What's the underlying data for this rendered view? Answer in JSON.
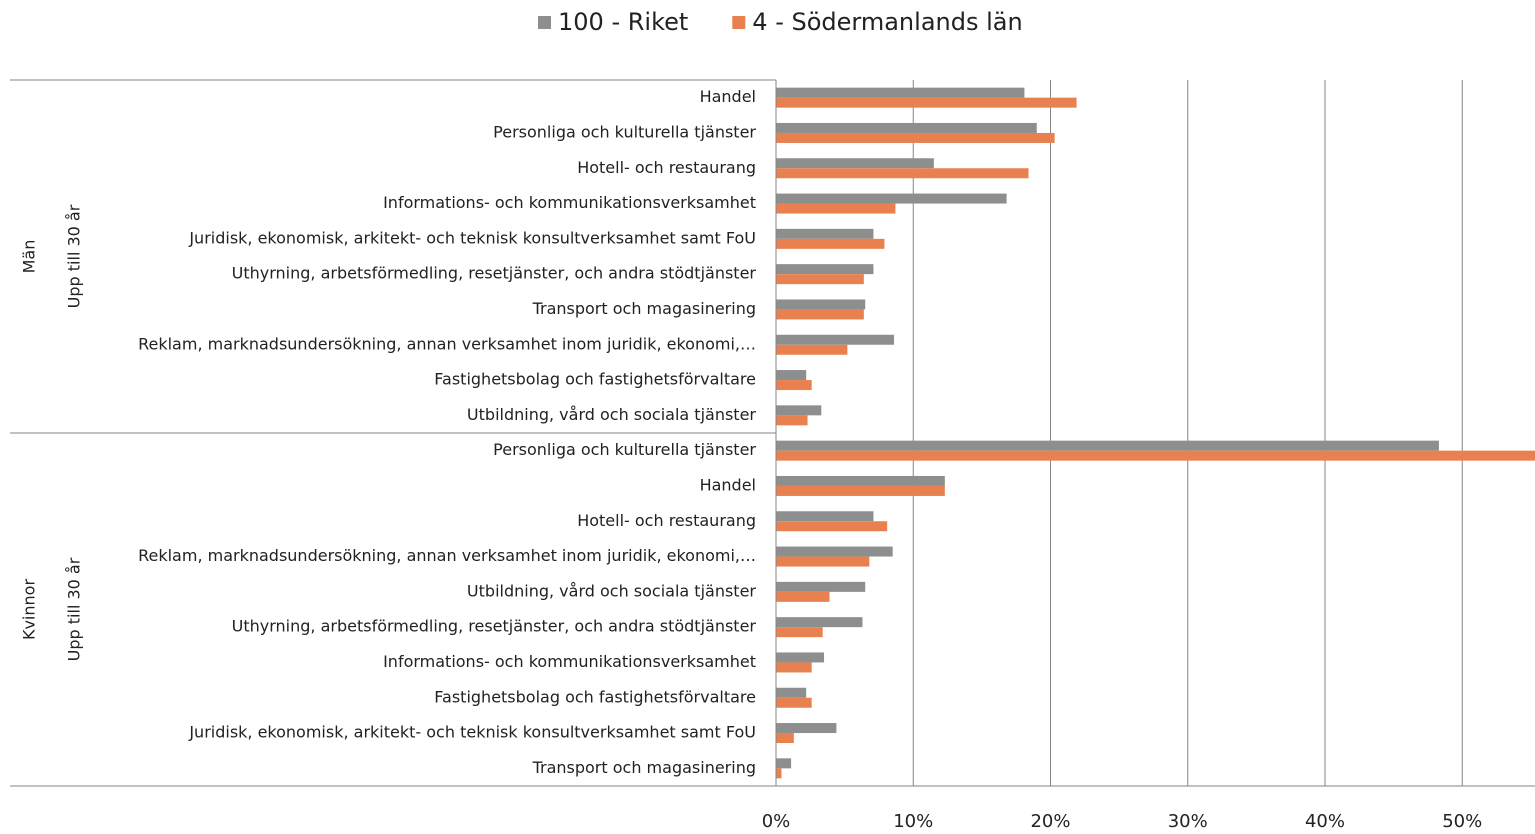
{
  "chart_data": {
    "type": "barh",
    "groups": [
      {
        "name": "Män",
        "subgroup": "Upp till 30 år",
        "categories": [
          "Handel",
          "Personliga och kulturella tjänster",
          "Hotell- och restaurang",
          "Informations- och kommunikationsverksamhet",
          "Juridisk, ekonomisk, arkitekt- och teknisk konsultverksamhet samt FoU",
          "Uthyrning, arbetsförmedling, resetjänster, och andra stödtjänster",
          "Transport och magasinering",
          "Reklam, marknadsundersökning, annan verksamhet inom juridik, ekonomi,…",
          "Fastighetsbolag och fastighetsförvaltare",
          "Utbildning, vård och sociala tjänster"
        ]
      },
      {
        "name": "Kvinnor",
        "subgroup": "Upp till 30 år",
        "categories": [
          "Personliga och kulturella tjänster",
          "Handel",
          "Hotell- och restaurang",
          "Reklam, marknadsundersökning, annan verksamhet inom juridik, ekonomi,…",
          "Utbildning, vård och sociala tjänster",
          "Uthyrning, arbetsförmedling, resetjänster, och andra stödtjänster",
          "Informations- och kommunikationsverksamhet",
          "Fastighetsbolag och fastighetsförvaltare",
          "Juridisk, ekonomisk, arkitekt- och teknisk konsultverksamhet samt FoU",
          "Transport och magasinering"
        ]
      }
    ],
    "series": [
      {
        "name": "100 - Riket",
        "color": "#8c8f8e",
        "values": [
          18.1,
          19.0,
          11.5,
          16.8,
          7.1,
          7.1,
          6.5,
          8.6,
          2.2,
          3.3,
          48.3,
          12.3,
          7.1,
          8.5,
          6.5,
          6.3,
          3.5,
          2.2,
          4.4,
          1.1
        ]
      },
      {
        "name": "4 - Södermanlands län",
        "color": "#e8804f",
        "values": [
          21.9,
          20.3,
          18.4,
          8.7,
          7.9,
          6.4,
          6.4,
          5.2,
          2.6,
          2.3,
          56,
          12.3,
          8.1,
          6.8,
          3.9,
          3.4,
          2.6,
          2.6,
          1.3,
          0.4
        ]
      }
    ],
    "xlim": [
      0,
      55.3
    ],
    "xticks": [
      {
        "value": 0,
        "label": "0%"
      },
      {
        "value": 10,
        "label": "10%"
      },
      {
        "value": 20,
        "label": "20%"
      },
      {
        "value": 30,
        "label": "30%"
      },
      {
        "value": 40,
        "label": "40%"
      },
      {
        "value": 50,
        "label": "50%"
      }
    ],
    "grid": true,
    "legend": "top"
  }
}
